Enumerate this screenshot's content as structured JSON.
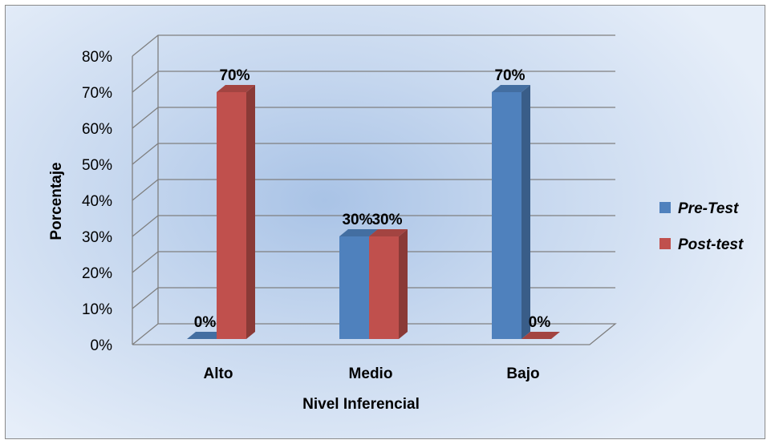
{
  "chart_data": {
    "type": "bar",
    "categories": [
      "Alto",
      "Medio",
      "Bajo"
    ],
    "series": [
      {
        "name": "Pre-Test",
        "values": [
          0,
          30,
          70
        ],
        "labels": [
          "0%",
          "30%",
          "70%"
        ]
      },
      {
        "name": "Post-test",
        "values": [
          70,
          30,
          0
        ],
        "labels": [
          "70%",
          "30%",
          "0%"
        ]
      }
    ],
    "xlabel": "Nivel Inferencial",
    "ylabel": "Porcentaje",
    "ylim": [
      0,
      80
    ],
    "yticks": [
      "0%",
      "10%",
      "20%",
      "30%",
      "40%",
      "50%",
      "60%",
      "70%",
      "80%"
    ],
    "grid": true,
    "legend_position": "right",
    "colors": {
      "Pre-Test": "#4f81bd",
      "Post-test": "#c0504d"
    }
  }
}
